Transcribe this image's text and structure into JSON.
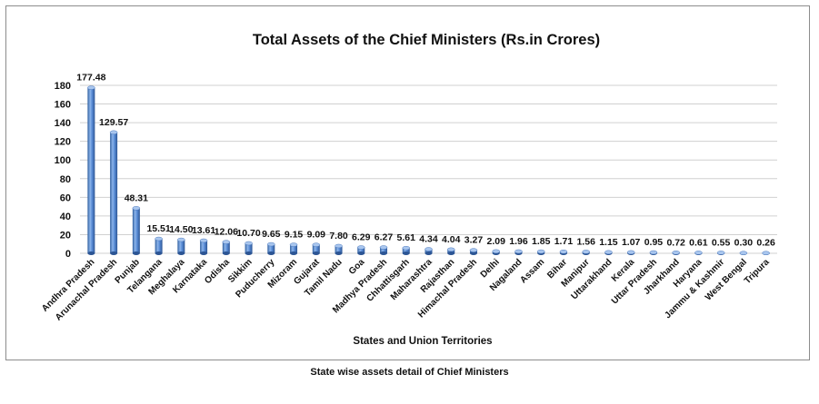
{
  "chart_data": {
    "type": "bar",
    "title": "Total Assets of the Chief Ministers (Rs.in Crores)",
    "xlabel": "States and Union Territories",
    "ylabel": "",
    "ylim": [
      0,
      180
    ],
    "yticks": [
      0,
      20,
      40,
      60,
      80,
      100,
      120,
      140,
      160,
      180
    ],
    "grid": true,
    "legend": "none",
    "bar_color": "#5b8ed8",
    "categories": [
      "Andhra Pradesh",
      "Arunachal Pradesh",
      "Punjab",
      "Telangana",
      "Meghalaya",
      "Karnataka",
      "Odisha",
      "Sikkim",
      "Puducherry",
      "Mizoram",
      "Gujarat",
      "Tamil Nadu",
      "Goa",
      "Madhya Pradesh",
      "Chhattisgarh",
      "Maharashtra",
      "Rajasthan",
      "Himachal Pradesh",
      "Delhi",
      "Nagaland",
      "Assam",
      "Bihar",
      "Manipur",
      "Uttarakhand",
      "Kerala",
      "Uttar Pradesh",
      "Jharkhand",
      "Haryana",
      "Jammu & Kashmir",
      "West Bengal",
      "Tripura"
    ],
    "values": [
      177.48,
      129.57,
      48.31,
      15.51,
      14.5,
      13.61,
      12.06,
      10.7,
      9.65,
      9.15,
      9.09,
      7.8,
      6.29,
      6.27,
      5.61,
      4.34,
      4.04,
      3.27,
      2.09,
      1.96,
      1.85,
      1.71,
      1.56,
      1.15,
      1.07,
      0.95,
      0.72,
      0.61,
      0.55,
      0.3,
      0.26
    ],
    "data_labels": [
      "177.48",
      "129.57",
      "48.31",
      "15.51",
      "14.50",
      "13.61",
      "12.06",
      "10.70",
      "9.65",
      "9.15",
      "9.09",
      "7.80",
      "6.29",
      "6.27",
      "5.61",
      "4.34",
      "4.04",
      "3.27",
      "2.09",
      "1.96",
      "1.85",
      "1.71",
      "1.56",
      "1.15",
      "1.07",
      "0.95",
      "0.72",
      "0.61",
      "0.55",
      "0.30",
      "0.26"
    ]
  },
  "caption": "State wise assets detail of Chief Ministers"
}
